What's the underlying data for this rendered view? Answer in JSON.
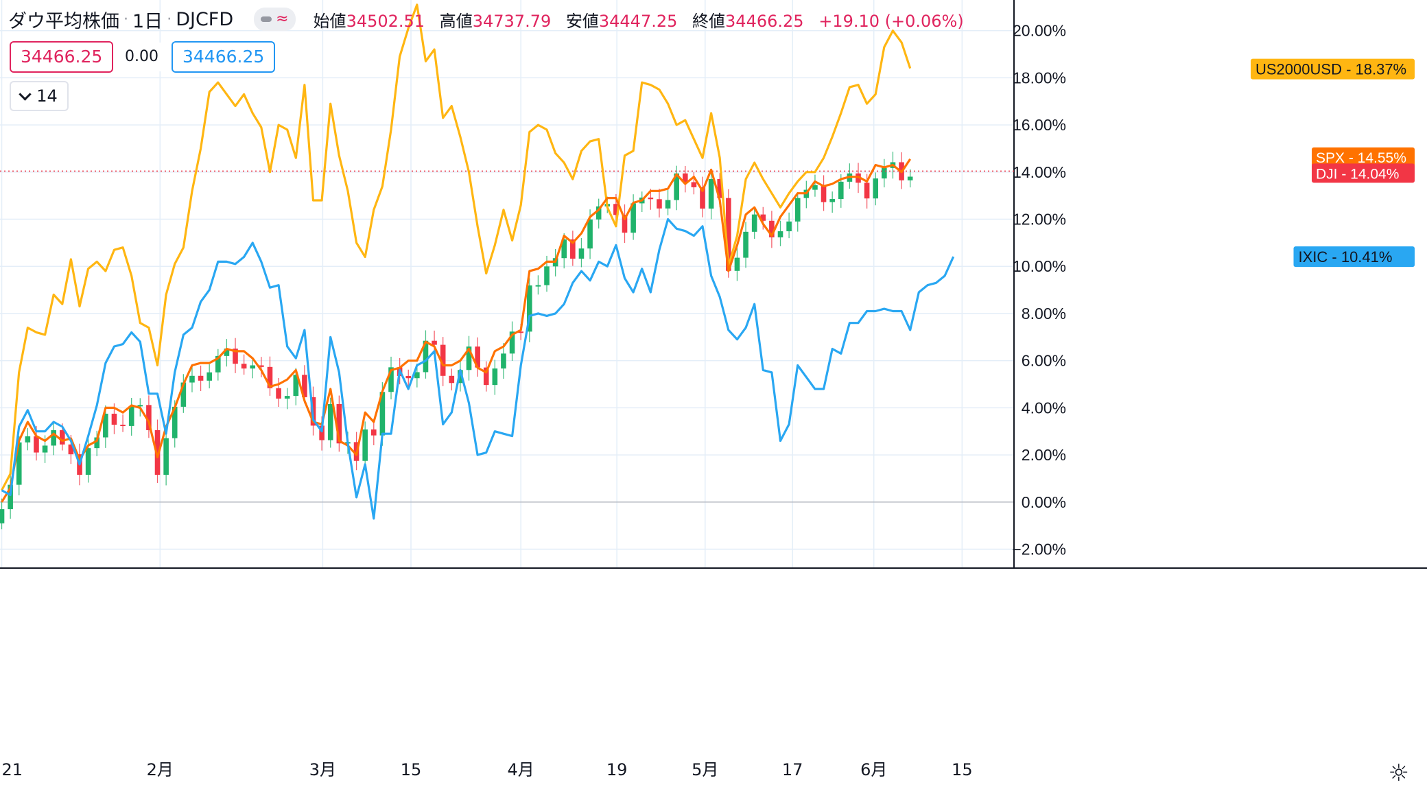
{
  "header": {
    "symbol": "ダウ平均株価",
    "interval": "1日",
    "exchange": "DJCFD",
    "approx_icon": "≈",
    "open_label": "始値",
    "open": "34502.51",
    "high_label": "高値",
    "high": "34737.79",
    "low_label": "安値",
    "low": "34447.25",
    "close_label": "終値",
    "close": "34466.25",
    "change": "+19.10 (+0.06%)"
  },
  "price_boxes": {
    "sell": "34466.25",
    "spread": "0.00",
    "buy": "34466.25"
  },
  "indicator_toggle": {
    "icon": "chevron-down-icon",
    "count": "14"
  },
  "settings_icon": "gear-icon",
  "colors": {
    "US2000USD": "#ffb612",
    "SPX": "#ff7200",
    "IXIC": "#29a7f2",
    "DJI": "#f23645",
    "up": "#26a69a",
    "up_candle": "#20b36b",
    "down_candle": "#f23645",
    "grid": "#e4eef8"
  },
  "chart_data": {
    "type": "line",
    "note_axis": "percent change",
    "ylim": [
      -2.8,
      21.3
    ],
    "y_ticks": [
      -2,
      0,
      2,
      4,
      6,
      8,
      10,
      12,
      14,
      16,
      18,
      20
    ],
    "y_tick_labels": [
      "−2.00%",
      "0.00%",
      "2.00%",
      "4.00%",
      "6.00%",
      "8.00%",
      "10.00%",
      "12.00%",
      "14.00%",
      "16.00%",
      "18.00%",
      "20.00%"
    ],
    "x_range": [
      -0.2,
      117
    ],
    "x_ticks": [
      {
        "x": 0,
        "label": "21"
      },
      {
        "x": 18.3,
        "label": "2月"
      },
      {
        "x": 37.1,
        "label": "3月"
      },
      {
        "x": 47.3,
        "label": "15"
      },
      {
        "x": 60.0,
        "label": "4月"
      },
      {
        "x": 71.1,
        "label": "19"
      },
      {
        "x": 81.3,
        "label": "5月"
      },
      {
        "x": 91.4,
        "label": "17"
      },
      {
        "x": 100.8,
        "label": "6月"
      },
      {
        "x": 111.0,
        "label": "15"
      }
    ],
    "grid": true,
    "series": [
      {
        "name": "US2000USD",
        "last_label": "18.37%",
        "values": [
          0.5,
          1.2,
          5.5,
          7.4,
          7.2,
          7.1,
          8.8,
          8.4,
          10.3,
          8.3,
          9.9,
          10.2,
          9.8,
          10.7,
          10.8,
          9.6,
          7.6,
          7.4,
          5.8,
          8.8,
          10.1,
          10.8,
          13.2,
          15.0,
          17.4,
          17.8,
          17.3,
          16.8,
          17.3,
          16.5,
          15.9,
          14.0,
          16.0,
          15.8,
          14.6,
          17.7,
          12.8,
          12.8,
          16.9,
          14.7,
          13.2,
          11.0,
          10.4,
          12.4,
          13.4,
          15.8,
          18.9,
          20.1,
          21.1,
          18.7,
          19.2,
          16.3,
          16.8,
          15.5,
          14.0,
          11.7,
          9.7,
          10.9,
          12.4,
          11.1,
          12.6,
          15.7,
          16.0,
          15.8,
          14.8,
          14.4,
          13.7,
          14.9,
          15.3,
          15.4,
          12.5,
          11.7,
          14.7,
          14.9,
          17.8,
          17.7,
          17.5,
          16.9,
          16.0,
          16.2,
          15.4,
          14.6,
          16.5,
          14.6,
          10.0,
          11.3,
          13.7,
          14.4,
          13.7,
          13.1,
          12.5,
          13.1,
          13.6,
          14.0,
          14.0,
          14.6,
          15.5,
          16.5,
          17.6,
          17.7,
          16.9,
          17.3,
          19.3,
          20.0,
          19.5,
          18.4
        ]
      },
      {
        "name": "SPX",
        "last_label": "14.55%",
        "values": [
          0,
          0.6,
          2.6,
          3.4,
          2.8,
          2.6,
          2.9,
          2.6,
          2.7,
          1.8,
          2.4,
          2.6,
          4.0,
          4.0,
          3.8,
          4.1,
          4.0,
          3.4,
          1.9,
          3.2,
          4.0,
          5.0,
          5.8,
          5.9,
          5.9,
          6.1,
          6.5,
          6.4,
          6.4,
          6.1,
          5.6,
          4.9,
          5.0,
          5.2,
          5.6,
          4.3,
          3.4,
          3.3,
          4.8,
          2.6,
          2.4,
          2.0,
          3.8,
          3.4,
          4.7,
          5.6,
          5.7,
          6.0,
          6.0,
          6.8,
          6.6,
          5.8,
          5.8,
          6.0,
          6.5,
          5.7,
          5.5,
          6.4,
          6.6,
          7.1,
          7.3,
          9.8,
          9.9,
          10.2,
          10.2,
          11.3,
          11.0,
          11.4,
          12.1,
          12.4,
          12.9,
          12.9,
          12.0,
          12.7,
          12.8,
          13.2,
          13.2,
          13.3,
          13.9,
          13.5,
          13.8,
          13.2,
          14.1,
          12.8,
          9.8,
          10.9,
          12.2,
          12.5,
          11.8,
          11.3,
          12.1,
          12.6,
          13.1,
          13.1,
          13.6,
          13.4,
          13.5,
          13.7,
          13.8,
          13.8,
          13.6,
          14.3,
          14.2,
          14.3,
          14.0,
          14.55
        ]
      },
      {
        "name": "IXIC",
        "last_label": "10.41%",
        "values": [
          0.5,
          0.3,
          3.2,
          3.9,
          3.0,
          3.0,
          3.4,
          3.2,
          2.6,
          1.6,
          2.8,
          4.1,
          5.9,
          6.6,
          6.7,
          7.2,
          6.8,
          4.6,
          4.6,
          2.9,
          5.5,
          7.1,
          7.4,
          8.5,
          9.0,
          10.2,
          10.2,
          10.1,
          10.4,
          11.0,
          10.2,
          9.1,
          9.2,
          6.6,
          6.1,
          7.3,
          3.5,
          3.0,
          7.0,
          5.5,
          2.5,
          0.2,
          1.6,
          -0.7,
          2.9,
          2.9,
          5.6,
          4.8,
          5.8,
          6.0,
          6.4,
          3.3,
          3.8,
          5.6,
          4.2,
          2.0,
          2.1,
          3.0,
          2.9,
          2.8,
          5.8,
          7.9,
          8.0,
          7.9,
          8.0,
          8.4,
          9.3,
          9.8,
          9.4,
          10.2,
          10.0,
          10.9,
          9.5,
          8.9,
          9.9,
          8.9,
          10.7,
          12.0,
          11.6,
          11.5,
          11.3,
          11.7,
          9.6,
          8.7,
          7.3,
          6.9,
          7.4,
          8.4,
          5.6,
          5.5,
          2.6,
          3.3,
          5.8,
          5.3,
          4.8,
          4.8,
          6.5,
          6.3,
          7.6,
          7.6,
          8.1,
          8.1,
          8.2,
          8.1,
          8.1,
          7.3,
          8.9,
          9.2,
          9.3,
          9.6,
          10.41
        ]
      },
      {
        "name": "DJI",
        "last_label": "14.04%",
        "type": "candlestick"
      }
    ],
    "last_value_labels": [
      {
        "series": "US2000USD",
        "text": "18.37%",
        "y": 18.37
      },
      {
        "series": "SPX",
        "text": "14.55%",
        "y": 14.55
      },
      {
        "series": "DJI",
        "text": "14.04%",
        "y": 14.04
      },
      {
        "series": "IXIC",
        "text": "10.41%",
        "y": 10.41
      }
    ],
    "price_line": 14.04
  }
}
